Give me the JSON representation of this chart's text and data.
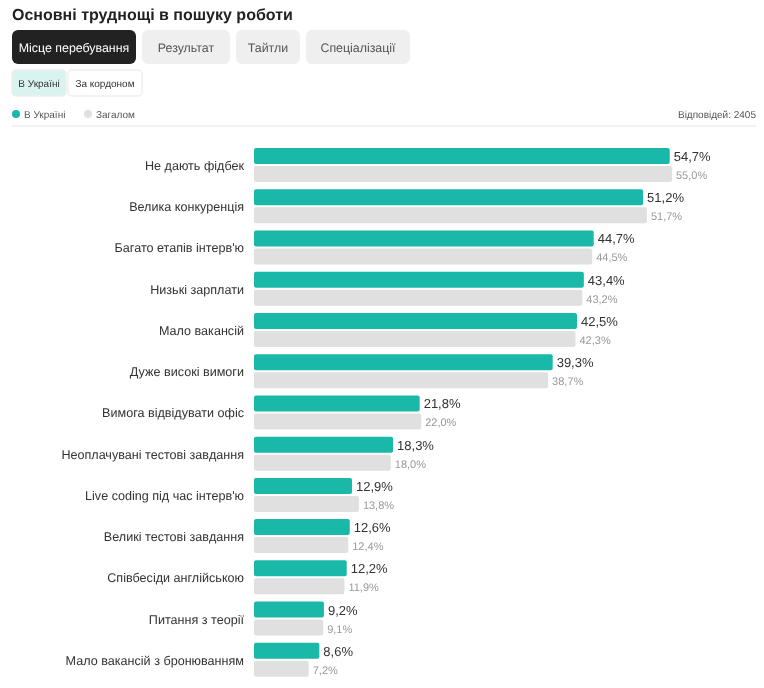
{
  "chart_data": {
    "type": "bar",
    "orientation": "horizontal",
    "title": "Основні труднощі в пошуку роботи",
    "annotations": [
      "Місце перебування",
      "Результат",
      "Тайтли",
      "Спеціалізації",
      "В Україні",
      "За кордоном",
      "Відповідей: 2405"
    ],
    "categories": [
      "Не дають фідбек",
      "Велика конкуренція",
      "Багато етапів інтерв'ю",
      "Низькі зарплати",
      "Мало вакансій",
      "Дуже високі вимоги",
      "Вимога відвідувати офіс",
      "Неоплачувані тестові завдання",
      "Live coding під час інтерв'ю",
      "Великі тестові завдання",
      "Співбесіди англійською",
      "Питання з теорії",
      "Мало вакансій з бронюванням"
    ],
    "series": [
      {
        "name": "В Україні",
        "color": "#1ab8a8",
        "values": [
          54.7,
          51.2,
          44.7,
          43.4,
          42.5,
          39.3,
          21.8,
          18.3,
          12.9,
          12.6,
          12.2,
          9.2,
          8.6
        ],
        "value_labels": [
          "54,7%",
          "51,2%",
          "44,7%",
          "43,4%",
          "42,5%",
          "39,3%",
          "21,8%",
          "18,3%",
          "12,9%",
          "12,6%",
          "12,2%",
          "9,2%",
          "8,6%"
        ]
      },
      {
        "name": "Загалом",
        "color": "#e0e0e0",
        "values": [
          55.0,
          51.7,
          44.5,
          43.2,
          42.3,
          38.7,
          22.0,
          18.0,
          13.8,
          12.4,
          11.9,
          9.1,
          7.2
        ],
        "value_labels": [
          "55,0%",
          "51,7%",
          "44,5%",
          "43,2%",
          "42,3%",
          "38,7%",
          "22,0%",
          "18,0%",
          "13,8%",
          "12,4%",
          "11,9%",
          "9,1%",
          "7,2%"
        ]
      }
    ],
    "legend": "top left"
  }
}
